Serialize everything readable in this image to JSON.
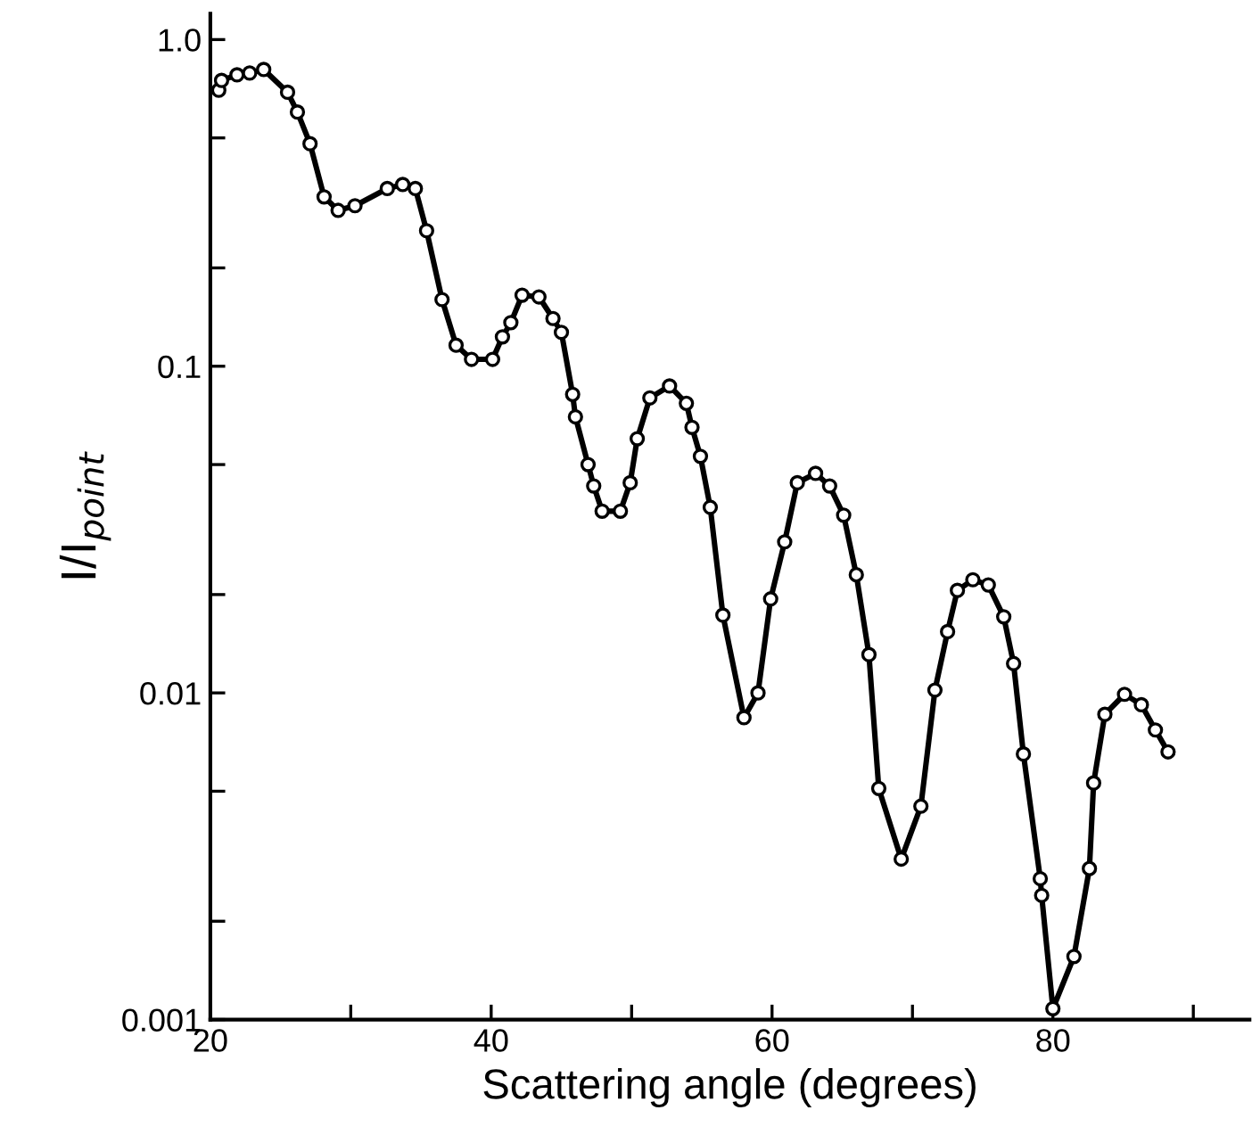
{
  "chart_data": {
    "type": "line",
    "xlabel": "Scattering angle (degrees)",
    "ylabel": "I/I$_{point}$",
    "log": "y",
    "grid": false,
    "legend": false,
    "marker": "circle",
    "line_style": "solid",
    "xlim": [
      20,
      94
    ],
    "xticks": [
      20,
      {
        "value": 30,
        "label": null
      },
      40,
      {
        "value": 50,
        "label": null
      },
      60,
      {
        "value": 70,
        "label": null
      },
      80,
      {
        "value": 90,
        "label": null
      }
    ],
    "ylim": [
      0.001,
      1.2
    ],
    "yticks": [
      0.001,
      {
        "value": 0.002,
        "label": null
      },
      {
        "value": 0.005,
        "label": null
      },
      0.01,
      {
        "value": 0.02,
        "label": null
      },
      {
        "value": 0.05,
        "label": null
      },
      0.1,
      {
        "value": 0.2,
        "label": null
      },
      {
        "value": 0.5,
        "label": null
      },
      {
        "value": 1,
        "label": "1.0"
      }
    ],
    "series": [
      {
        "color": "#000000",
        "x": [
          20.6,
          20.8,
          21.9,
          22.8,
          23.8,
          25.5,
          26.2,
          27.1,
          28.1,
          29.1,
          30.3,
          32.6,
          33.7,
          34.6,
          35.4,
          36.5,
          37.5,
          38.6,
          40.1,
          40.8,
          41.4,
          42.2,
          43.4,
          44.4,
          45.0,
          45.8,
          46.0,
          46.9,
          47.3,
          47.9,
          49.2,
          49.9,
          50.4,
          51.3,
          52.7,
          53.9,
          54.3,
          54.9,
          55.6,
          56.5,
          58.0,
          59.0,
          59.9,
          60.9,
          61.8,
          63.1,
          64.1,
          65.1,
          66.0,
          66.9,
          67.6,
          69.2,
          70.6,
          71.6,
          72.5,
          73.2,
          74.3,
          75.4,
          76.5,
          77.2,
          77.9,
          79.1,
          79.2,
          80.0,
          81.5,
          82.6,
          82.9,
          83.7,
          85.1,
          86.3,
          87.3,
          88.2
        ],
        "values": [
          0.7,
          0.75,
          0.78,
          0.79,
          0.81,
          0.69,
          0.6,
          0.48,
          0.33,
          0.3,
          0.31,
          0.35,
          0.36,
          0.35,
          0.26,
          0.16,
          0.116,
          0.105,
          0.105,
          0.123,
          0.136,
          0.165,
          0.163,
          0.14,
          0.127,
          0.082,
          0.07,
          0.05,
          0.043,
          0.036,
          0.036,
          0.044,
          0.06,
          0.08,
          0.087,
          0.077,
          0.065,
          0.053,
          0.037,
          0.0173,
          0.0084,
          0.01,
          0.0194,
          0.029,
          0.044,
          0.047,
          0.043,
          0.035,
          0.023,
          0.0131,
          0.0051,
          0.0031,
          0.0045,
          0.0102,
          0.0154,
          0.0206,
          0.0222,
          0.0214,
          0.0171,
          0.0123,
          0.0065,
          0.0027,
          0.0024,
          0.00108,
          0.00156,
          0.0029,
          0.0053,
          0.0086,
          0.0099,
          0.0092,
          0.0077,
          0.0066
        ]
      }
    ]
  }
}
